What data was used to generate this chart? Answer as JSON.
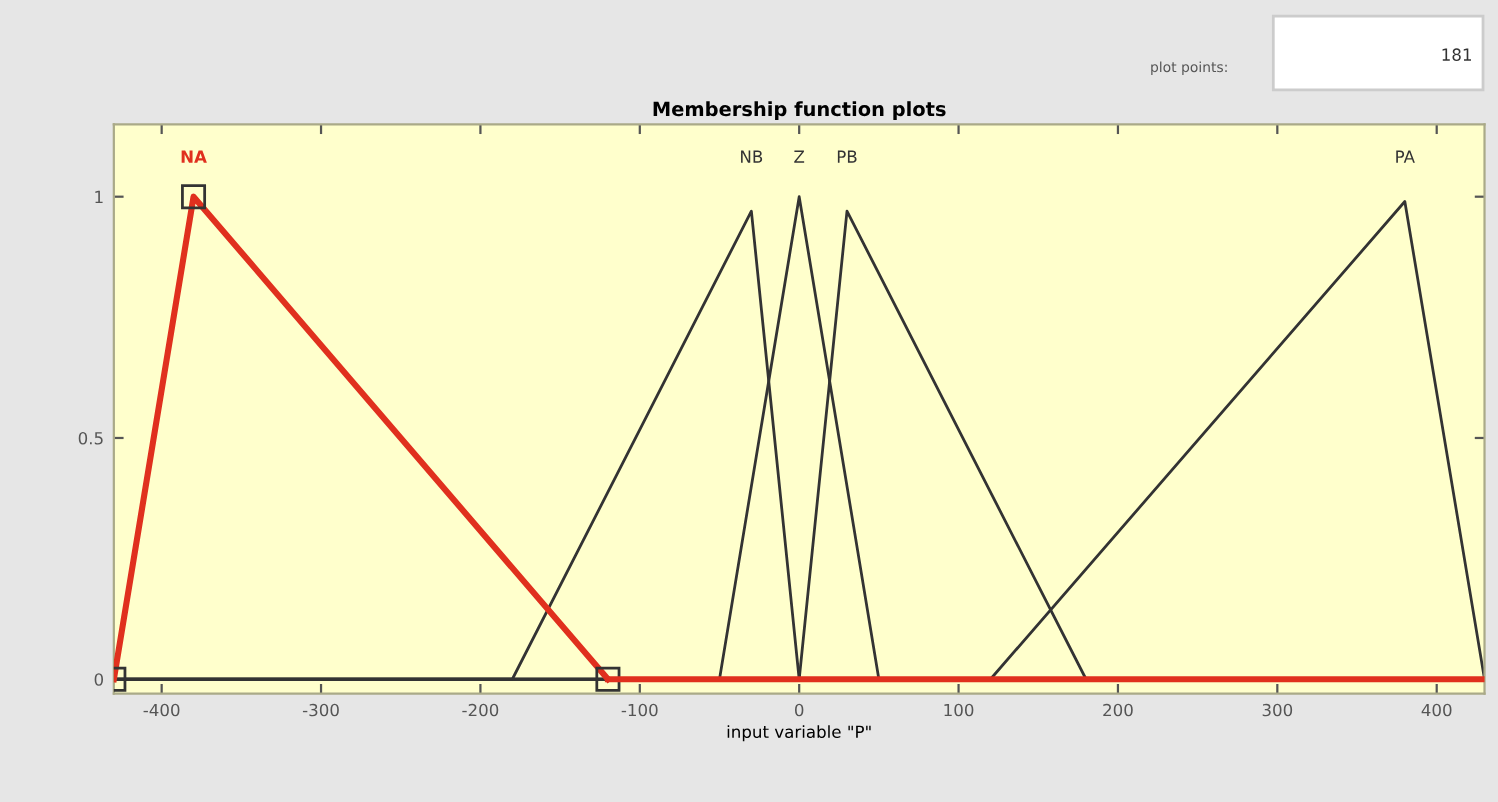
{
  "chart_data": {
    "type": "line",
    "title": "Membership function plots",
    "xlabel": "input variable \"P\"",
    "annotations": [
      "plot points:",
      "181"
    ],
    "xlim": [
      -430,
      430
    ],
    "ylim": [
      -0.03,
      1.15
    ],
    "xticks": [
      -400,
      -300,
      -200,
      -100,
      0,
      100,
      200,
      300,
      400
    ],
    "yticks": [
      0,
      0.5,
      1
    ],
    "grid": false,
    "legend": false,
    "line_style": "solid",
    "series": [
      {
        "name": "NA",
        "color": "#e0301e",
        "marker": "square",
        "x": [
          -430,
          -380,
          -120
        ],
        "values": [
          0,
          1,
          0
        ]
      },
      {
        "color": "#e0301e",
        "marker": "none",
        "x": [
          -120,
          430
        ],
        "values": [
          0,
          0
        ]
      },
      {
        "name": "NB",
        "color": "#333333",
        "marker": "none",
        "x": [
          -430,
          -180,
          -30,
          0,
          430
        ],
        "values": [
          0,
          0,
          0.97,
          0,
          0
        ]
      },
      {
        "name": "Z",
        "color": "#333333",
        "marker": "none",
        "x": [
          -430,
          -50,
          0,
          50,
          430
        ],
        "values": [
          0,
          0,
          1,
          0,
          0
        ]
      },
      {
        "name": "PB",
        "color": "#333333",
        "marker": "none",
        "x": [
          -430,
          0,
          30,
          180,
          430
        ],
        "values": [
          0,
          0,
          0.97,
          0,
          0
        ]
      },
      {
        "name": "PA",
        "color": "#333333",
        "marker": "none",
        "x": [
          -430,
          120,
          380,
          430
        ],
        "values": [
          0,
          0,
          0.99,
          0
        ]
      }
    ]
  }
}
